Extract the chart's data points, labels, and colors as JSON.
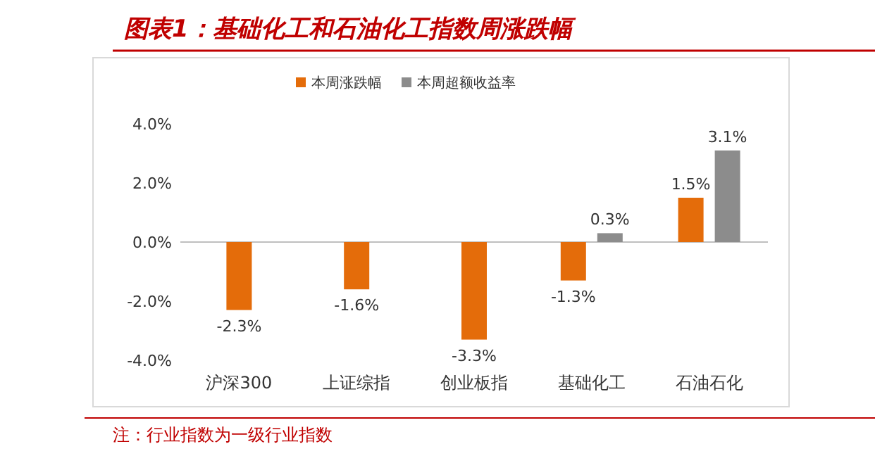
{
  "chart_data": {
    "type": "bar",
    "title": "图表1：基础化工和石油化工指数周涨跌幅",
    "categories": [
      "沪深300",
      "上证综指",
      "创业板指",
      "基础化工",
      "石油石化"
    ],
    "series": [
      {
        "name": "本周涨跌幅",
        "color": "#e46c0a",
        "values": [
          -2.3,
          -1.6,
          -3.3,
          -1.3,
          1.5
        ],
        "value_labels": [
          "-2.3%",
          "-1.6%",
          "-3.3%",
          "-1.3%",
          "1.5%"
        ]
      },
      {
        "name": "本周超额收益率",
        "color": "#8c8c8c",
        "values": [
          null,
          null,
          null,
          0.3,
          3.1
        ],
        "value_labels": [
          null,
          null,
          null,
          "0.3%",
          "3.1%"
        ]
      }
    ],
    "ylim": [
      -4,
      4
    ],
    "yticks": [
      {
        "value": -4,
        "label": "-4.0%"
      },
      {
        "value": -2,
        "label": "-2.0%"
      },
      {
        "value": 0,
        "label": "0.0%"
      },
      {
        "value": 2,
        "label": "2.0%"
      },
      {
        "value": 4,
        "label": "4.0%"
      }
    ],
    "legend": "top",
    "annotations": [
      "注：行业指数为一级行业指数"
    ]
  }
}
